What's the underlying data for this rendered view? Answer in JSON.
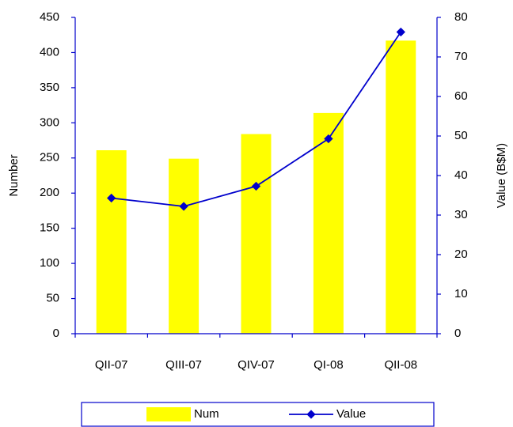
{
  "chart_data": {
    "type": "bar-line",
    "categories": [
      "QII-07",
      "QIII-07",
      "QIV-07",
      "QI-08",
      "QII-08"
    ],
    "series": [
      {
        "name": "Num",
        "type": "bar",
        "color": "#ffff00",
        "values": [
          261,
          249,
          284,
          314,
          417
        ]
      },
      {
        "name": "Value",
        "type": "line",
        "axis": "y2",
        "color": "#0000cc",
        "values": [
          34.3,
          32.2,
          37.3,
          49.3,
          76.3
        ]
      }
    ],
    "ylabel": "Number",
    "y2label": "Value (B$M)",
    "ylim": [
      0,
      450
    ],
    "yticks": [
      0,
      50,
      100,
      150,
      200,
      250,
      300,
      350,
      400,
      450
    ],
    "y2lim": [
      0,
      80
    ],
    "y2ticks": [
      0,
      10,
      20,
      30,
      40,
      50,
      60,
      70,
      80
    ],
    "legend": "bottom"
  }
}
